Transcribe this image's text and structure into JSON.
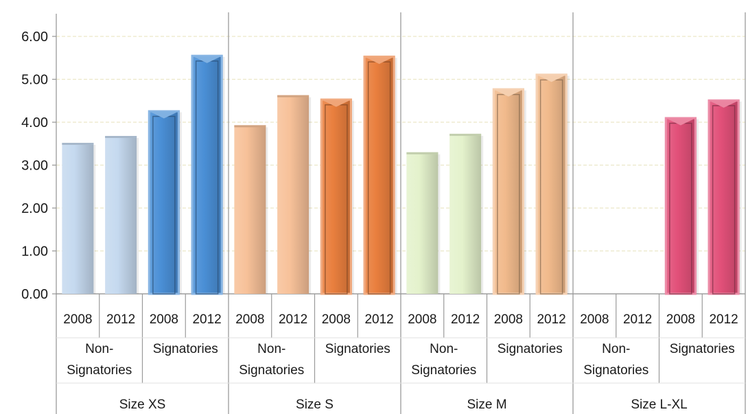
{
  "chart_data": {
    "type": "bar",
    "ylim": [
      0,
      6.5
    ],
    "yticks": [
      "0.00",
      "1.00",
      "2.00",
      "3.00",
      "4.00",
      "5.00",
      "6.00"
    ],
    "grid": true,
    "xlabel": "",
    "ylabel": "",
    "groups": [
      {
        "name": "Size XS",
        "subgroups": [
          {
            "name": "Non-\nSignatories",
            "years": [
              "2008",
              "2012"
            ],
            "values": [
              3.52,
              3.68
            ],
            "colors": [
              "#c5d9ef",
              "#c5d9ef"
            ]
          },
          {
            "name": "Signatories",
            "years": [
              "2008",
              "2012"
            ],
            "values": [
              4.28,
              5.57
            ],
            "colors": [
              "#4a8fd6",
              "#4a8fd6"
            ]
          }
        ]
      },
      {
        "name": "Size S",
        "subgroups": [
          {
            "name": "Non-\nSignatories",
            "years": [
              "2008",
              "2012"
            ],
            "values": [
              3.93,
              4.63
            ],
            "colors": [
              "#f7c199",
              "#f7c199"
            ]
          },
          {
            "name": "Signatories",
            "years": [
              "2008",
              "2012"
            ],
            "values": [
              4.55,
              5.55
            ],
            "colors": [
              "#e97f3e",
              "#e97f3e"
            ]
          }
        ]
      },
      {
        "name": "Size M",
        "subgroups": [
          {
            "name": "Non-\nSignatories",
            "years": [
              "2008",
              "2012"
            ],
            "values": [
              3.3,
              3.73
            ],
            "colors": [
              "#e4f2cc",
              "#e4f2cc"
            ]
          },
          {
            "name": "Signatories",
            "years": [
              "2008",
              "2012"
            ],
            "values": [
              4.79,
              5.13
            ],
            "colors": [
              "#f1ba8c",
              "#f1ba8c"
            ]
          }
        ]
      },
      {
        "name": "Size L-XL",
        "subgroups": [
          {
            "name": "Non-\nSignatories",
            "years": [
              "2008",
              "2012"
            ],
            "values": [
              0,
              0
            ],
            "colors": [
              "#f5b8c8",
              "#f5b8c8"
            ]
          },
          {
            "name": "Signatories",
            "years": [
              "2008",
              "2012"
            ],
            "values": [
              4.12,
              4.53
            ],
            "colors": [
              "#e25079",
              "#e25079"
            ]
          }
        ]
      }
    ]
  }
}
